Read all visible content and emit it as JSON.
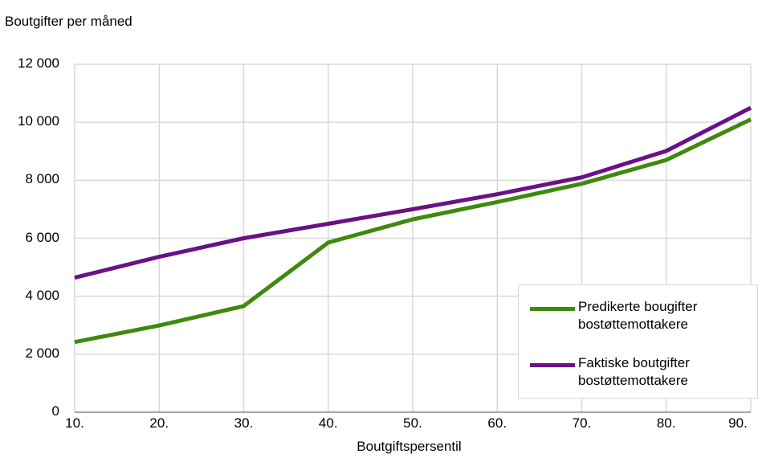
{
  "chart_data": {
    "type": "line",
    "ylabel": "Boutgifter per måned",
    "xlabel": "Boutgiftspersentil",
    "categories": [
      "10.",
      "20.",
      "30.",
      "40.",
      "50.",
      "60.",
      "70.",
      "80.",
      "90."
    ],
    "ylim": [
      0,
      12000
    ],
    "yticks": [
      "0",
      "2 000",
      "4 000",
      "6 000",
      "8 000",
      "10 000",
      "12 000"
    ],
    "ytick_values": [
      0,
      2000,
      4000,
      6000,
      8000,
      10000,
      12000
    ],
    "grid": true,
    "legend_position": "bottom-right",
    "series": [
      {
        "name": "Predikerte bougifter bostøttemottakere",
        "color": "#3f8a0e",
        "values": [
          2420,
          2990,
          3660,
          5850,
          6650,
          7250,
          7880,
          8700,
          10100
        ]
      },
      {
        "name": "Faktiske boutgifter bostøttemottakere",
        "color": "#6a1184",
        "values": [
          4640,
          5360,
          6000,
          6500,
          7000,
          7520,
          8100,
          9010,
          10500
        ]
      }
    ]
  }
}
